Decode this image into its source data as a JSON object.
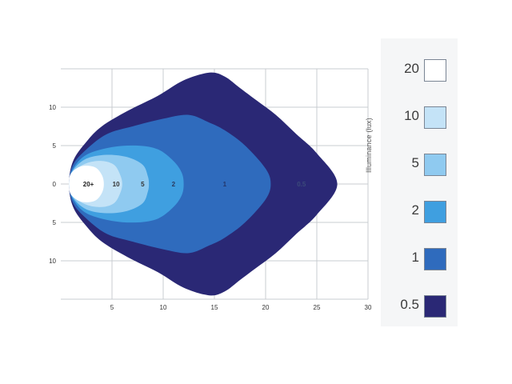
{
  "chart_data": {
    "type": "contour",
    "xlim": [
      0,
      30
    ],
    "ylim": [
      -15,
      15
    ],
    "x_ticks": [
      "5",
      "10",
      "15",
      "20",
      "25",
      "30"
    ],
    "y_ticks": [
      {
        "value": 10,
        "label": "10"
      },
      {
        "value": 5,
        "label": "5"
      },
      {
        "value": 0,
        "label": "0"
      },
      {
        "value": -5,
        "label": "5"
      },
      {
        "value": -10,
        "label": "10"
      }
    ],
    "grid": true,
    "legend_title": "Illuminance (lux)",
    "legend_placement": "right",
    "levels": [
      {
        "value": 20,
        "label": "20",
        "color": "#ffffff"
      },
      {
        "value": 10,
        "label": "10",
        "color": "#c4e3f7"
      },
      {
        "value": 5,
        "label": "5",
        "color": "#8fcaf0"
      },
      {
        "value": 2,
        "label": "2",
        "color": "#3f9fe0"
      },
      {
        "value": 1,
        "label": "1",
        "color": "#2f6bbd"
      },
      {
        "value": 0.5,
        "label": "0.5",
        "color": "#2a2875"
      }
    ],
    "contours": [
      {
        "level": 0.5,
        "color": "#2a2875",
        "points": [
          [
            0.8,
            0
          ],
          [
            1.2,
            3
          ],
          [
            2.5,
            5.5
          ],
          [
            4,
            7.5
          ],
          [
            6.5,
            9.5
          ],
          [
            9.5,
            11.5
          ],
          [
            12,
            13.5
          ],
          [
            14.5,
            14.5
          ],
          [
            16,
            14
          ],
          [
            17.5,
            12.5
          ],
          [
            19,
            11
          ],
          [
            21,
            9
          ],
          [
            23,
            6.5
          ],
          [
            25,
            4
          ],
          [
            27,
            0
          ],
          [
            25,
            -4
          ],
          [
            23,
            -6.5
          ],
          [
            21,
            -9
          ],
          [
            19,
            -11
          ],
          [
            17.5,
            -12.5
          ],
          [
            16,
            -14
          ],
          [
            14.5,
            -14.5
          ],
          [
            12,
            -13.5
          ],
          [
            9.5,
            -11.5
          ],
          [
            6.5,
            -9.5
          ],
          [
            4,
            -7.5
          ],
          [
            2.5,
            -5.5
          ],
          [
            1.2,
            -3
          ]
        ]
      },
      {
        "level": 1,
        "color": "#2f6bbd",
        "points": [
          [
            0.8,
            0
          ],
          [
            1.2,
            2.5
          ],
          [
            2.5,
            4.5
          ],
          [
            4.5,
            6.5
          ],
          [
            7,
            7.5
          ],
          [
            10,
            8.5
          ],
          [
            12.5,
            9
          ],
          [
            14.5,
            8
          ],
          [
            16,
            7
          ],
          [
            18,
            5
          ],
          [
            20,
            2
          ],
          [
            20.5,
            0
          ],
          [
            20,
            -2
          ],
          [
            18,
            -5
          ],
          [
            16,
            -7
          ],
          [
            14.5,
            -8
          ],
          [
            12.5,
            -9
          ],
          [
            10,
            -8.5
          ],
          [
            7,
            -7.5
          ],
          [
            4.5,
            -6.5
          ],
          [
            2.5,
            -4.5
          ],
          [
            1.2,
            -2.5
          ]
        ]
      },
      {
        "level": 2,
        "color": "#3f9fe0",
        "points": [
          [
            0.8,
            0
          ],
          [
            1.2,
            2
          ],
          [
            2.5,
            3.8
          ],
          [
            5,
            4.8
          ],
          [
            7.5,
            5
          ],
          [
            9.5,
            4.5
          ],
          [
            11,
            3
          ],
          [
            11.8,
            1.5
          ],
          [
            12,
            0
          ],
          [
            11.8,
            -1.5
          ],
          [
            11,
            -3
          ],
          [
            9.5,
            -4.5
          ],
          [
            7.5,
            -5
          ],
          [
            5,
            -4.8
          ],
          [
            2.5,
            -3.8
          ],
          [
            1.2,
            -2
          ]
        ]
      },
      {
        "level": 5,
        "color": "#8fcaf0",
        "points": [
          [
            0.8,
            0
          ],
          [
            1.2,
            1.8
          ],
          [
            2.5,
            3.3
          ],
          [
            4.5,
            3.8
          ],
          [
            6.5,
            3.5
          ],
          [
            8,
            2.5
          ],
          [
            8.5,
            1
          ],
          [
            8.6,
            0
          ],
          [
            8.5,
            -1
          ],
          [
            8,
            -2.5
          ],
          [
            6.5,
            -3.5
          ],
          [
            4.5,
            -3.8
          ],
          [
            2.5,
            -3.3
          ],
          [
            1.2,
            -1.8
          ]
        ]
      },
      {
        "level": 10,
        "color": "#c4e3f7",
        "points": [
          [
            0.8,
            0
          ],
          [
            1.2,
            1.6
          ],
          [
            2.5,
            2.7
          ],
          [
            4,
            3
          ],
          [
            5.2,
            2.5
          ],
          [
            5.8,
            1.2
          ],
          [
            6,
            0
          ],
          [
            5.8,
            -1.2
          ],
          [
            5.2,
            -2.5
          ],
          [
            4,
            -3
          ],
          [
            2.5,
            -2.7
          ],
          [
            1.2,
            -1.6
          ]
        ]
      },
      {
        "level": 20,
        "color": "#ffffff",
        "points": [
          [
            0.8,
            0
          ],
          [
            1,
            1.4
          ],
          [
            2,
            2.3
          ],
          [
            3.3,
            2.2
          ],
          [
            4,
            1.2
          ],
          [
            4.2,
            0
          ],
          [
            4,
            -1.2
          ],
          [
            3.3,
            -2.2
          ],
          [
            2,
            -2.3
          ],
          [
            1,
            -1.4
          ]
        ]
      }
    ],
    "annotations": [
      {
        "x": 2.7,
        "y": 0,
        "text": "20+",
        "color": "#222222"
      },
      {
        "x": 5.4,
        "y": 0,
        "text": "10",
        "color": "#333333"
      },
      {
        "x": 8,
        "y": 0,
        "text": "5",
        "color": "#333333"
      },
      {
        "x": 11,
        "y": 0,
        "text": "2",
        "color": "#2a3a60"
      },
      {
        "x": 16,
        "y": 0,
        "text": "1",
        "color": "#23366a"
      },
      {
        "x": 23.5,
        "y": 0,
        "text": "0.5",
        "color": "#3b4a7a"
      }
    ]
  }
}
